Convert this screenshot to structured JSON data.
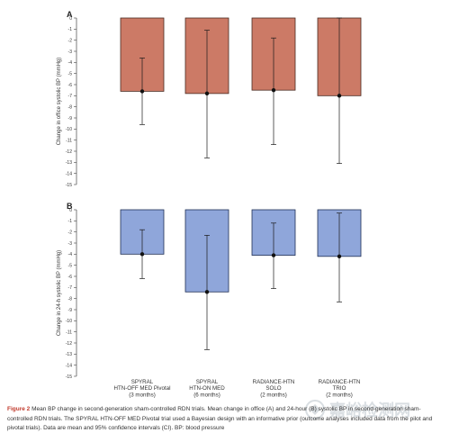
{
  "chart_data": [
    {
      "type": "bar",
      "panel_label": "A",
      "ylabel": "Change in office systolic BP (mmHg)",
      "ylim": [
        -15,
        0
      ],
      "yticks": [
        "0",
        "-1",
        "-2",
        "-3",
        "-4",
        "-5",
        "-6",
        "-7",
        "-8",
        "-9",
        "-10",
        "-11",
        "-12",
        "-13",
        "-14",
        "-15"
      ],
      "categories": [
        "SPYRAL HTN-OFF MED Pivotal (3 months)",
        "SPYRAL HTN-ON MED (6 months)",
        "RADIANCE-HTN SOLO (2 months)",
        "RADIANCE-HTN TRIO (2 months)"
      ],
      "values": [
        -6.6,
        -6.8,
        -6.5,
        -7.0
      ],
      "ci_lower": [
        -9.6,
        -12.6,
        -11.4,
        -13.1
      ],
      "ci_upper": [
        -3.6,
        -1.1,
        -1.8,
        0.0
      ],
      "bar_color": "#cc7a66",
      "bar_edge": "#4a2a20"
    },
    {
      "type": "bar",
      "panel_label": "B",
      "ylabel": "Change in 24-h systolic BP (mmHg)",
      "ylim": [
        -15,
        0
      ],
      "yticks": [
        "0",
        "-1",
        "-2",
        "-3",
        "-4",
        "-5",
        "-6",
        "-7",
        "-8",
        "-9",
        "-10",
        "-11",
        "-12",
        "-13",
        "-14",
        "-15"
      ],
      "categories": [
        "SPYRAL HTN-OFF MED Pivotal (3 months)",
        "SPYRAL HTN-ON MED (6 months)",
        "RADIANCE-HTN SOLO (2 months)",
        "RADIANCE-HTN TRIO (2 months)"
      ],
      "values": [
        -4.0,
        -7.4,
        -4.1,
        -4.2
      ],
      "ci_lower": [
        -6.2,
        -12.6,
        -7.1,
        -8.3
      ],
      "ci_upper": [
        -1.8,
        -2.3,
        -1.2,
        -0.3
      ],
      "bar_color": "#8fa6da",
      "bar_edge": "#1f2f55"
    }
  ],
  "category_labels": [
    [
      "SPYRAL",
      "HTN-OFF MED Pivotal",
      "(3 months)"
    ],
    [
      "SPYRAL",
      "HTN-ON MED",
      "(6 months)"
    ],
    [
      "RADIANCE-HTN",
      "SOLO",
      "(2 months)"
    ],
    [
      "RADIANCE-HTN",
      "TRIO",
      "(2 months)"
    ]
  ],
  "caption": {
    "label": "Figure 2",
    "text": "Mean BP change in second-generation sham-controlled RDN trials. Mean change in office (A) and 24-hour (B) systolic BP in second-generation sham-controlled RDN trials. The SPYRAL HTN-OFF MED Pivotal trial used a Bayesian design with an informative prior (outcome analyses included data from the pilot and pivotal trials). Data are mean and 95% confidence intervals (CI). BP: blood pressure"
  },
  "watermark": "嘉峪检测网"
}
